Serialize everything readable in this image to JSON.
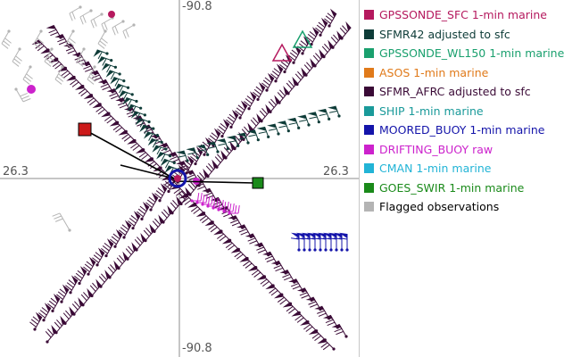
{
  "axis": {
    "top_lon": "-90.8",
    "bottom_lon": "-90.8",
    "left_lat": "26.3",
    "right_lat": "26.3"
  },
  "legend": {
    "items": [
      {
        "label": "GPSSONDE_SFC 1-min marine",
        "color": "#b5195e",
        "text_color": "#b5195e"
      },
      {
        "label": "SFMR42 adjusted to sfc",
        "color": "#0e3c38",
        "text_color": "#0e3c38"
      },
      {
        "label": "GPSSONDE_WL150 1-min marine",
        "color": "#1aa06e",
        "text_color": "#1aa06e"
      },
      {
        "label": "ASOS 1-min marine",
        "color": "#e07a1a",
        "text_color": "#e07a1a"
      },
      {
        "label": "SFMR_AFRC adjusted to sfc",
        "color": "#3a0a36",
        "text_color": "#3a0a36"
      },
      {
        "label": "SHIP 1-min marine",
        "color": "#1a9a9a",
        "text_color": "#1a9a9a"
      },
      {
        "label": "MOORED_BUOY 1-min marine",
        "color": "#1414aa",
        "text_color": "#1414aa"
      },
      {
        "label": "DRIFTING_BUOY raw",
        "color": "#cc22cc",
        "text_color": "#cc22cc"
      },
      {
        "label": "CMAN 1-min marine",
        "color": "#22b4d6",
        "text_color": "#22b4d6"
      },
      {
        "label": "GOES_SWIR 1-min marine",
        "color": "#1a8a1a",
        "text_color": "#1a8a1a"
      },
      {
        "label": "Flagged observations",
        "color": "#b4b4b4",
        "text_color": "#000000"
      }
    ]
  }
}
